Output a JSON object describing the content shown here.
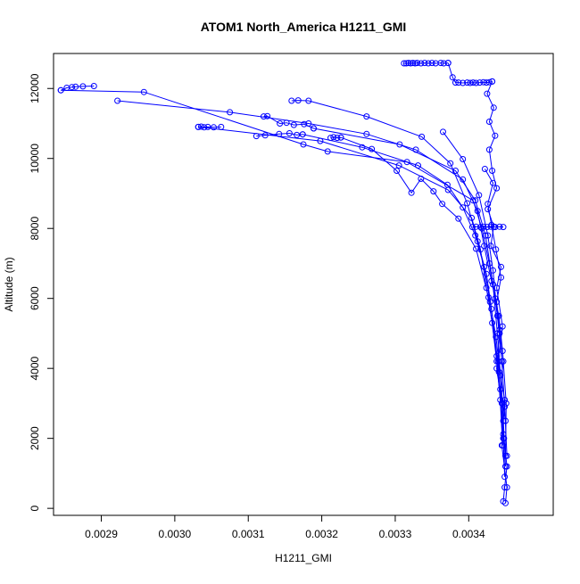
{
  "chart_data": {
    "type": "scatter",
    "title": "ATOM1 North_America H1211_GMI",
    "xlabel": "H1211_GMI",
    "ylabel": "Altitude (m)",
    "xlim": [
      0.002835,
      0.003515
    ],
    "ylim": [
      -200,
      13000
    ],
    "x_ticks": [
      0.0029,
      0.003,
      0.0031,
      0.0032,
      0.0033,
      0.0034
    ],
    "x_tick_labels": [
      "0.0029",
      "0.0030",
      "0.0031",
      "0.0032",
      "0.0033",
      "0.0034"
    ],
    "y_ticks": [
      0,
      2000,
      4000,
      6000,
      8000,
      10000,
      12000
    ],
    "y_tick_labels": [
      "0",
      "2000",
      "4000",
      "6000",
      "8000",
      "10000",
      "12000"
    ],
    "grid": false,
    "legend": "none",
    "series_style": {
      "color": "#0000ff",
      "marker": "open-circle",
      "line": "connected"
    },
    "series": [
      {
        "x": [
          0.002845,
          0.002853,
          0.00286,
          0.002865,
          0.002875,
          0.00289
        ],
        "y": [
          11950,
          12020,
          12040,
          12050,
          12060,
          12070
        ]
      },
      {
        "x": [
          0.002845,
          0.002958,
          0.003175,
          0.003208,
          0.003316,
          0.003406,
          0.003418,
          0.003428,
          0.003436,
          0.003442,
          0.003438,
          0.003445,
          0.003448,
          0.003452,
          0.003449,
          0.003447
        ],
        "y": [
          11950,
          11900,
          10400,
          10200,
          9900,
          8800,
          8000,
          7000,
          6000,
          5000,
          4000,
          3000,
          2000,
          1200,
          600,
          200
        ]
      },
      {
        "x": [
          0.002922,
          0.003075,
          0.003182,
          0.003261,
          0.003328,
          0.003392,
          0.003412,
          0.003421,
          0.003431,
          0.003441,
          0.003446,
          0.003451,
          0.00345
        ],
        "y": [
          11650,
          11320,
          11000,
          10700,
          10250,
          9400,
          8500,
          7500,
          6500,
          5500,
          4500,
          3000,
          1500
        ]
      },
      {
        "x": [
          0.003032,
          0.003036,
          0.00304,
          0.003045,
          0.003053,
          0.003063
        ],
        "y": [
          10900,
          10910,
          10890,
          10900,
          10890,
          10900
        ]
      },
      {
        "x": [
          0.003032,
          0.003198,
          0.003305,
          0.003372,
          0.003404,
          0.003416,
          0.003424,
          0.003432,
          0.003438,
          0.003443,
          0.003447,
          0.003449
        ],
        "y": [
          10900,
          10500,
          9800,
          9100,
          8300,
          7400,
          6300,
          5300,
          4200,
          3100,
          2000,
          900
        ]
      },
      {
        "x": [
          0.003121,
          0.003126,
          0.003143,
          0.003152,
          0.003162,
          0.003176,
          0.003189
        ],
        "y": [
          11200,
          11210,
          11000,
          11020,
          10960,
          10980,
          10860
        ]
      },
      {
        "x": [
          0.003189,
          0.003306,
          0.003382,
          0.003409,
          0.003423,
          0.003433,
          0.003439,
          0.003446,
          0.00345
        ],
        "y": [
          10860,
          10400,
          9650,
          8800,
          7800,
          6400,
          5000,
          3000,
          1200
        ]
      },
      {
        "x": [
          0.003111,
          0.003123,
          0.003142,
          0.003156,
          0.003166,
          0.003174
        ],
        "y": [
          10640,
          10660,
          10700,
          10720,
          10670,
          10690
        ]
      },
      {
        "x": [
          0.003174,
          0.003255,
          0.003331,
          0.003371,
          0.003392,
          0.003409,
          0.003421,
          0.003429,
          0.003437,
          0.003443,
          0.003447
        ],
        "y": [
          10690,
          10320,
          9800,
          9250,
          8600,
          7800,
          6900,
          5900,
          4900,
          3800,
          2500
        ]
      },
      {
        "x": [
          0.003212,
          0.003216,
          0.003221,
          0.003226
        ],
        "y": [
          10590,
          10610,
          10590,
          10600
        ]
      },
      {
        "x": [
          0.003226,
          0.003268,
          0.003302,
          0.003322,
          0.003335,
          0.003352,
          0.003364,
          0.003386,
          0.00341,
          0.003427,
          0.003438,
          0.003447
        ],
        "y": [
          10600,
          10270,
          9650,
          9020,
          9420,
          9060,
          8700,
          8280,
          7420,
          6030,
          4350,
          2120
        ]
      },
      {
        "x": [
          0.003159,
          0.003168,
          0.003182,
          0.003261,
          0.003336,
          0.003375,
          0.003398,
          0.003412,
          0.003424,
          0.003431,
          0.003441,
          0.003446
        ],
        "y": [
          11650,
          11660,
          11650,
          11200,
          10620,
          9860,
          8720,
          7630,
          6700,
          5700,
          3900,
          1800
        ]
      },
      {
        "x": [
          0.003312,
          0.003315,
          0.003318,
          0.003321,
          0.003324,
          0.003327,
          0.00333,
          0.003335,
          0.00334,
          0.003345,
          0.00335,
          0.003355,
          0.003362,
          0.003366,
          0.003372
        ],
        "y": [
          12720,
          12720,
          12730,
          12720,
          12730,
          12720,
          12730,
          12720,
          12730,
          12720,
          12730,
          12720,
          12730,
          12720,
          12730
        ]
      },
      {
        "x": [
          0.003372,
          0.003378,
          0.003382,
          0.003386,
          0.003392,
          0.003398,
          0.003402,
          0.003406,
          0.00341,
          0.003415,
          0.00342,
          0.003424,
          0.003428,
          0.003432
        ],
        "y": [
          12730,
          12320,
          12170,
          12170,
          12160,
          12170,
          12160,
          12170,
          12160,
          12170,
          12180,
          12170,
          12180,
          12200
        ]
      },
      {
        "x": [
          0.003432,
          0.003425,
          0.003434,
          0.003428,
          0.003436,
          0.003428,
          0.003432,
          0.003438,
          0.003426,
          0.003434,
          0.00343,
          0.003444,
          0.003438,
          0.003446,
          0.00344,
          0.003449,
          0.003445,
          0.003452,
          0.00345
        ],
        "y": [
          12200,
          11850,
          11450,
          11050,
          10650,
          10250,
          9650,
          9150,
          8550,
          8050,
          7500,
          6900,
          6300,
          5200,
          4200,
          3100,
          1800,
          600,
          150
        ]
      },
      {
        "x": [
          0.003405,
          0.00341,
          0.003416,
          0.00342,
          0.003425,
          0.00343,
          0.003436,
          0.003442,
          0.003447
        ],
        "y": [
          8040,
          8050,
          8040,
          8050,
          8040,
          8050,
          8040,
          8050,
          8040
        ]
      },
      {
        "x": [
          0.003365,
          0.003392,
          0.003414,
          0.003426,
          0.003433,
          0.003439,
          0.003445,
          0.003449,
          0.003452
        ],
        "y": [
          10760,
          9980,
          8950,
          7800,
          6800,
          5500,
          4200,
          2900,
          1500
        ]
      },
      {
        "x": [
          0.003422,
          0.003433,
          0.003426,
          0.003431,
          0.003437,
          0.003444,
          0.003438,
          0.003442,
          0.003447,
          0.003443,
          0.00345
        ],
        "y": [
          9700,
          9300,
          8700,
          8100,
          7400,
          6600,
          5900,
          5100,
          4200,
          3400,
          2500
        ]
      }
    ]
  }
}
